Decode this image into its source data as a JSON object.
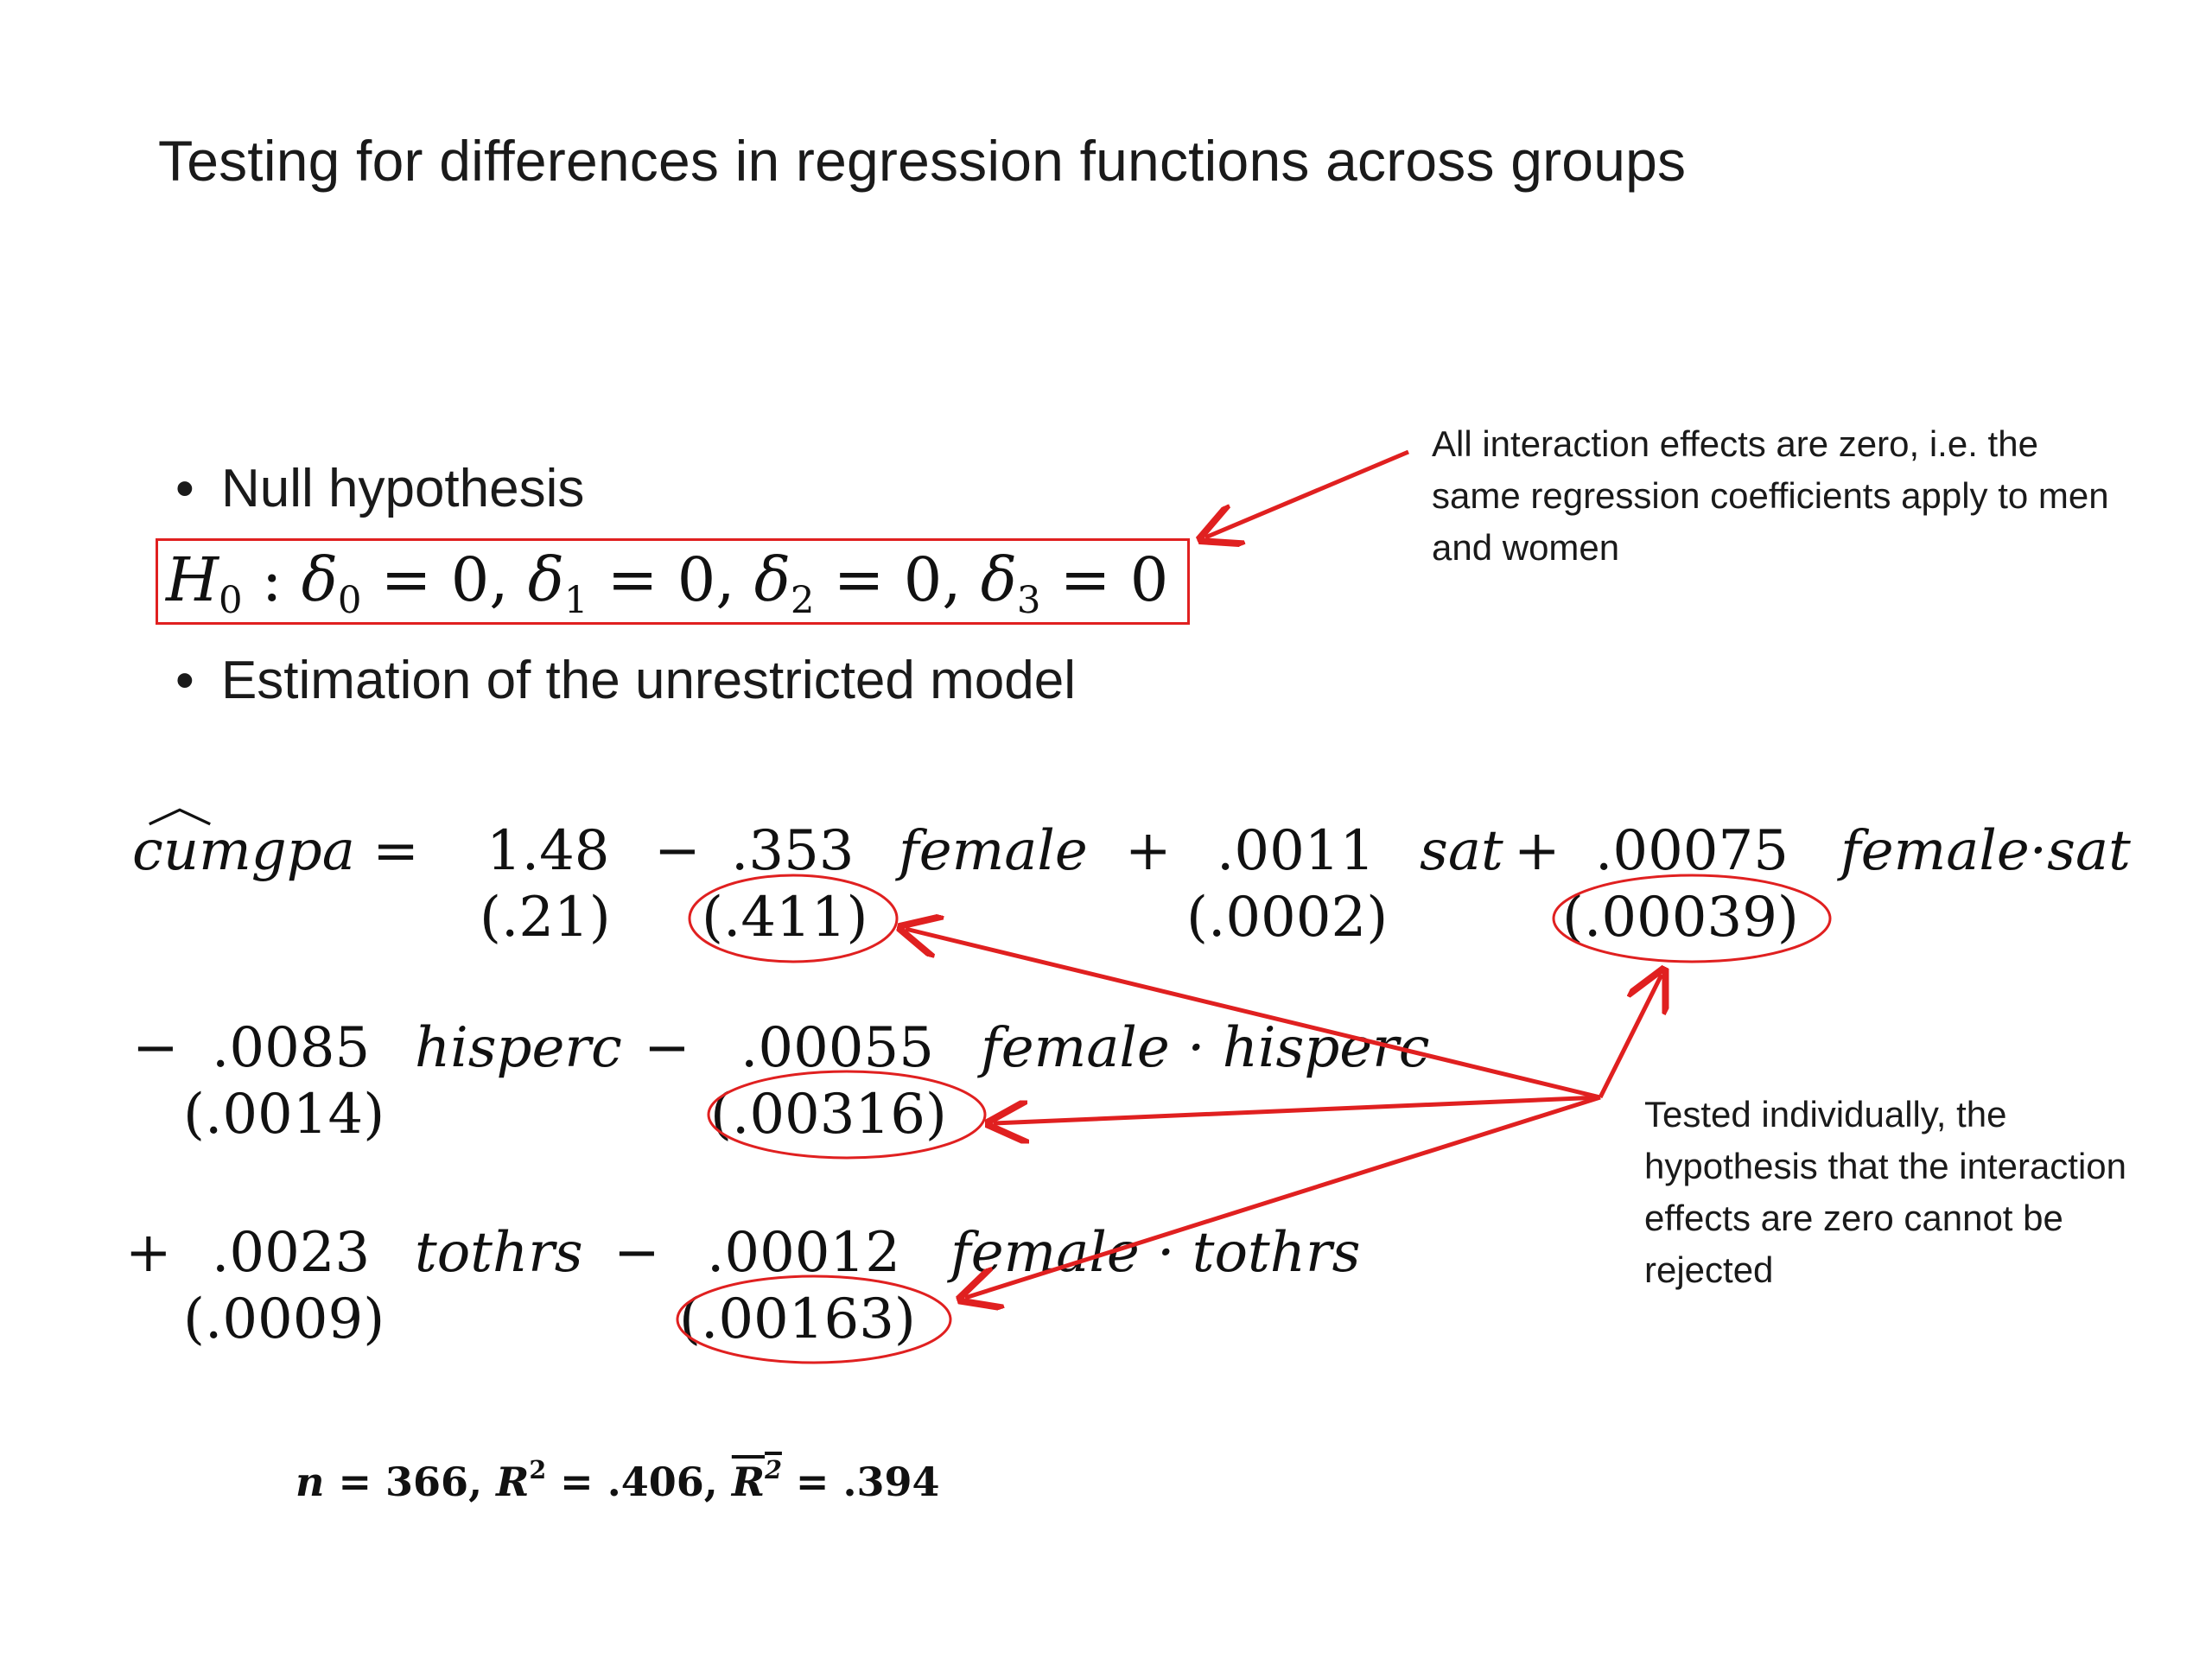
{
  "slide": {
    "title": "Testing for differences in regression functions across groups",
    "bullets": [
      "Null hypothesis",
      "Estimation of the unrestricted model"
    ],
    "bullet_char": "•",
    "null_hypothesis": {
      "H": "H",
      "terms": [
        {
          "sym": "δ",
          "sub": "0",
          "val": "0"
        },
        {
          "sym": "δ",
          "sub": "1",
          "val": "0"
        },
        {
          "sym": "δ",
          "sub": "2",
          "val": "0"
        },
        {
          "sym": "δ",
          "sub": "3",
          "val": "0"
        }
      ]
    },
    "annotation_top": "All interaction effects are zero, i.e. the same regression coefficients apply to men and women",
    "annotation_bottom": "Tested individually, the hypothesis that the interaction effects are zero cannot be rejected",
    "equation": {
      "lhs": "cumgpa",
      "row1": {
        "c1": "1.48",
        "c2": ".353",
        "v2": "female",
        "c3": ".0011",
        "v3": "sat",
        "c4": ".00075",
        "v4": "female·sat",
        "se1": "(.21)",
        "se2": "(.411)",
        "se3": "(.0002)",
        "se4": "(.00039)"
      },
      "row2": {
        "c1": ".0085",
        "v1": "hisperc",
        "c2": ".00055",
        "v2": "female · hisperc",
        "se1": "(.0014)",
        "se2": "(.00316)"
      },
      "row3": {
        "c1": ".0023",
        "v1": "tothrs",
        "c2": ".00012",
        "v2": "female · tothrs",
        "se1": "(.0009)",
        "se2": "(.00163)"
      }
    },
    "stats": {
      "n": "366",
      "r2": ".406",
      "adj_r2": ".394"
    },
    "colors": {
      "accent": "#e02020",
      "text": "#1a1a1a"
    }
  }
}
